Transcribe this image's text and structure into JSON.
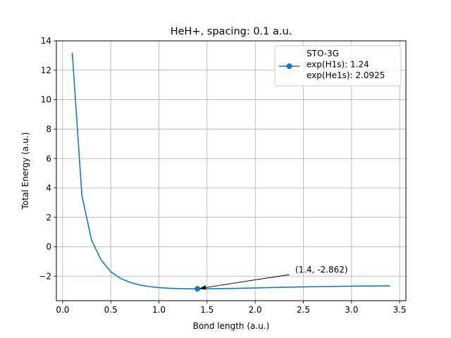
{
  "chart_data": {
    "type": "line",
    "title": "HeH+, spacing: 0.1 a.u.",
    "xlabel": "Bond length (a.u.)",
    "ylabel": "Total Energy (a.u.)",
    "xlim": [
      -0.065,
      3.565
    ],
    "ylim": [
      -3.667,
      14.0
    ],
    "xticks": [
      0.0,
      0.5,
      1.0,
      1.5,
      2.0,
      2.5,
      3.0,
      3.5
    ],
    "xtick_labels": [
      "0.0",
      "0.5",
      "1.0",
      "1.5",
      "2.0",
      "2.5",
      "3.0",
      "3.5"
    ],
    "yticks": [
      -2,
      0,
      2,
      4,
      6,
      8,
      10,
      12,
      14
    ],
    "ytick_labels": [
      "−2",
      "0",
      "2",
      "4",
      "6",
      "8",
      "10",
      "12",
      "14"
    ],
    "grid": true,
    "legend_position": "top-right",
    "line_color": "#1f77b4",
    "series": [
      {
        "name": "STO-3G",
        "x": [
          0.1,
          0.2,
          0.3,
          0.4,
          0.5,
          0.6,
          0.7,
          0.8,
          0.9,
          1.0,
          1.1,
          1.2,
          1.3,
          1.4,
          1.5,
          1.6,
          1.7,
          1.8,
          1.9,
          2.0,
          2.1,
          2.2,
          2.3,
          2.4,
          2.5,
          2.6,
          2.7,
          2.8,
          2.9,
          3.0,
          3.1,
          3.2,
          3.3,
          3.4
        ],
        "y": [
          13.2,
          3.5,
          0.45,
          -0.9,
          -1.7,
          -2.15,
          -2.42,
          -2.6,
          -2.71,
          -2.78,
          -2.82,
          -2.845,
          -2.858,
          -2.862,
          -2.858,
          -2.85,
          -2.84,
          -2.83,
          -2.815,
          -2.8,
          -2.785,
          -2.77,
          -2.755,
          -2.74,
          -2.73,
          -2.72,
          -2.71,
          -2.7,
          -2.69,
          -2.68,
          -2.675,
          -2.67,
          -2.665,
          -2.66
        ]
      }
    ],
    "marker_point": {
      "x": 1.4,
      "y": -2.862
    },
    "legend_lines": [
      "STO-3G",
      "exp(H1s): 1.24",
      "exp(He1s): 2.0925"
    ],
    "annotation": {
      "text": "(1.4, -2.862)",
      "target": [
        1.4,
        -2.862
      ],
      "text_at": [
        2.4,
        -1.75
      ]
    }
  }
}
